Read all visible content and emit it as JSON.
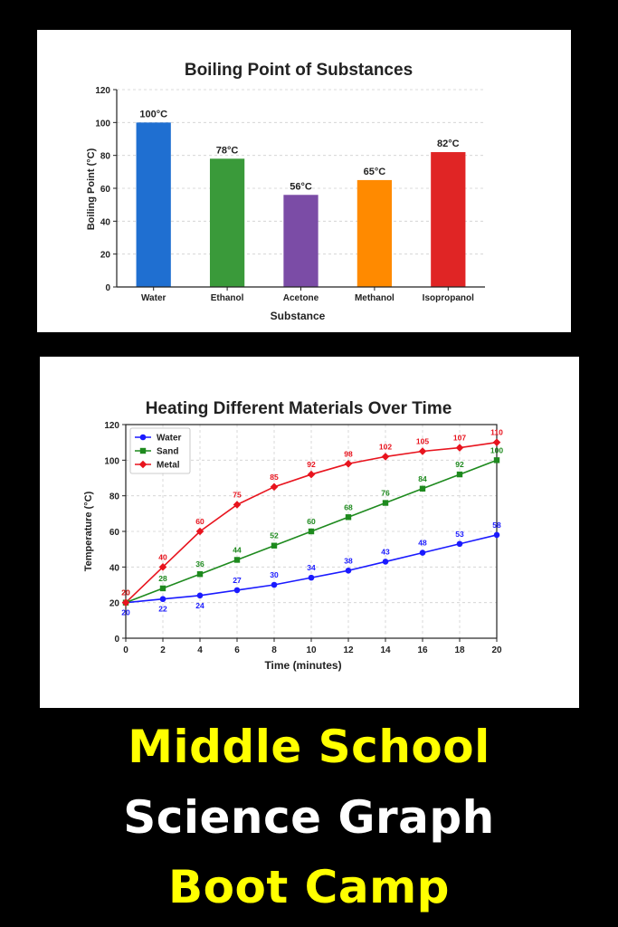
{
  "colors": {
    "background": "#000000",
    "panel": "#ffffff",
    "banner_yellow": "#ffff00",
    "banner_white": "#ffffff"
  },
  "chart_data": [
    {
      "type": "bar",
      "title": "Boiling Point of Substances",
      "xlabel": "Substance",
      "ylabel": "Boiling Point (°C)",
      "ylim": [
        0,
        120
      ],
      "yticks": [
        0,
        20,
        40,
        60,
        80,
        100,
        120
      ],
      "grid": true,
      "categories": [
        "Water",
        "Ethanol",
        "Acetone",
        "Methanol",
        "Isopropanol"
      ],
      "values": [
        100,
        78,
        56,
        65,
        82
      ],
      "data_labels": [
        "100°C",
        "78°C",
        "56°C",
        "65°C",
        "82°C"
      ],
      "colors": [
        "#1f6fd1",
        "#3a9a3a",
        "#7b4ca6",
        "#ff8a00",
        "#e02525"
      ]
    },
    {
      "type": "line",
      "title": "Heating Different Materials Over Time",
      "xlabel": "Time (minutes)",
      "ylabel": "Temperature (°C)",
      "xlim": [
        0,
        20
      ],
      "ylim": [
        0,
        120
      ],
      "xticks": [
        0,
        2,
        4,
        6,
        8,
        10,
        12,
        14,
        16,
        18,
        20
      ],
      "yticks": [
        0,
        20,
        40,
        60,
        80,
        100,
        120
      ],
      "grid": true,
      "legend_position": "top-left",
      "x": [
        0,
        2,
        4,
        6,
        8,
        10,
        12,
        14,
        16,
        18,
        20
      ],
      "series": [
        {
          "name": "Water",
          "color": "#1a1aff",
          "marker": "circle",
          "label_position": "below-start",
          "values": [
            20,
            22,
            24,
            27,
            30,
            34,
            38,
            43,
            48,
            53,
            58
          ]
        },
        {
          "name": "Sand",
          "color": "#1e8a1e",
          "marker": "square",
          "label_position": "above",
          "values": [
            20,
            28,
            36,
            44,
            52,
            60,
            68,
            76,
            84,
            92,
            100
          ]
        },
        {
          "name": "Metal",
          "color": "#e8141e",
          "marker": "diamond",
          "label_position": "above",
          "values": [
            20,
            40,
            60,
            75,
            85,
            92,
            98,
            102,
            105,
            107,
            110
          ]
        }
      ]
    }
  ],
  "banner": {
    "line1": "Middle School",
    "line2": "Science Graph",
    "line3": "Boot Camp"
  }
}
